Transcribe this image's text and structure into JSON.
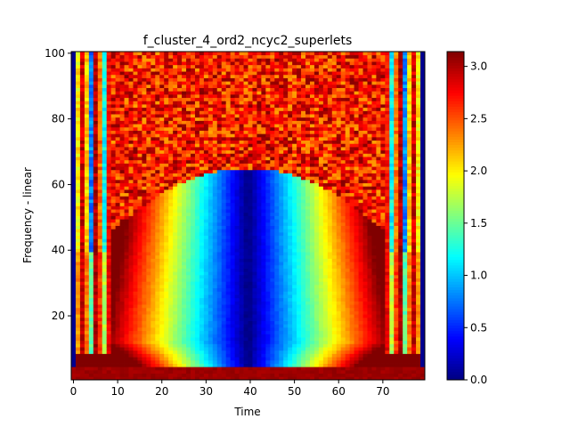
{
  "chart_data": {
    "type": "heatmap",
    "title": "f_cluster_4_ord2_ncyc2_superlets",
    "xlabel": "Time",
    "ylabel": "Frequency - linear",
    "x_range": [
      0,
      80
    ],
    "y_range": [
      1,
      100
    ],
    "xlim": [
      -0.5,
      79.5
    ],
    "ylim": [
      0.5,
      100.5
    ],
    "x_ticks": [
      0,
      10,
      20,
      30,
      40,
      50,
      60,
      70
    ],
    "y_ticks": [
      20,
      40,
      60,
      80,
      100
    ],
    "colorbar": {
      "colormap": "jet",
      "range": [
        0.0,
        3.14159
      ],
      "ticks": [
        "0.0",
        "0.5",
        "1.0",
        "1.5",
        "2.0",
        "2.5",
        "3.0"
      ],
      "tick_values": [
        0.0,
        0.5,
        1.0,
        1.5,
        2.0,
        2.5,
        3.0
      ]
    },
    "grid": false,
    "description_of_values": "Phase-like values per (time, frequency) cell; high (~3.1) at edges and at frequencies above ~65, low (~0) in a central trough near time 40, bottom rows near 1-4 saturated high."
  }
}
